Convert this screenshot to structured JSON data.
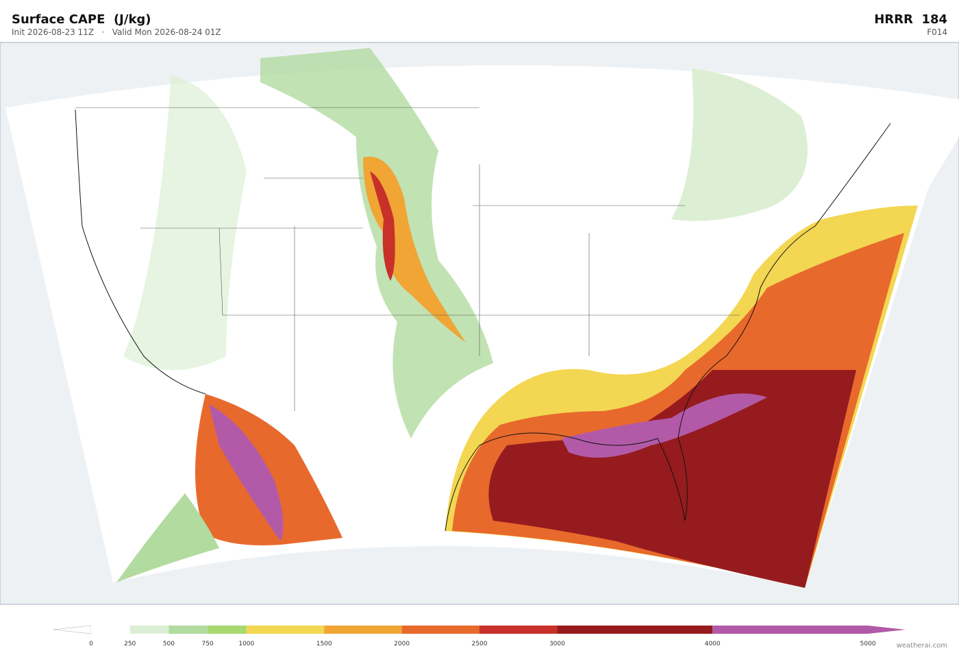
{
  "header": {
    "title": "Surface CAPE  (J/kg)",
    "subtitle": "Init 2026-08-23 11Z   ·   Valid Mon 2026-08-24 01Z",
    "model": "HRRR  184",
    "forecast": "F014"
  },
  "colorbar": {
    "levels": [
      0,
      250,
      500,
      750,
      1000,
      1500,
      2000,
      2500,
      3000,
      4000,
      5000
    ],
    "colors": [
      "#ffffff",
      "#dcefd4",
      "#b2dba0",
      "#a8d86f",
      "#f3d652",
      "#f0a535",
      "#e8692c",
      "#c8302a",
      "#961b1e",
      "#b25aa8"
    ]
  },
  "credit": "weatherai.com"
}
